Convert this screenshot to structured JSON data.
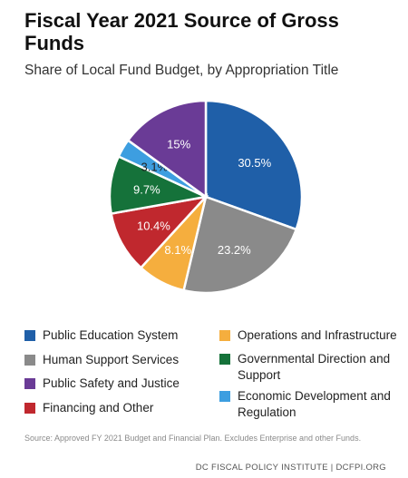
{
  "chart_data": {
    "type": "pie",
    "title": "Fiscal Year 2021 Source of Gross Funds",
    "subtitle": "Share of Local Fund Budget, by Appropriation Title",
    "slices": [
      {
        "label": "Public Education System",
        "value": 30.5,
        "display": "30.5%",
        "color": "#1f5fa8",
        "label_color": "#ffffff"
      },
      {
        "label": "Human Support Services",
        "value": 23.2,
        "display": "23.2%",
        "color": "#8a8a8a",
        "label_color": "#ffffff"
      },
      {
        "label": "Operations and Infrastructure",
        "value": 8.1,
        "display": "8.1%",
        "color": "#f5ae3e",
        "label_color": "#ffffff"
      },
      {
        "label": "Financing and Other",
        "value": 10.4,
        "display": "10.4%",
        "color": "#c0282e",
        "label_color": "#ffffff"
      },
      {
        "label": "Governmental Direction and Support",
        "value": 9.7,
        "display": "9.7%",
        "color": "#15723a",
        "label_color": "#ffffff"
      },
      {
        "label": "Economic Development and Regulation",
        "value": 3.1,
        "display": "3.1%",
        "color": "#3d9ee0",
        "label_color": "#222222"
      },
      {
        "label": "Public Safety and Justice",
        "value": 15,
        "display": "15%",
        "color": "#6a3b96",
        "label_color": "#ffffff"
      }
    ],
    "legend": [
      "Public Education System",
      "Human Support Services",
      "Public Safety and Justice",
      "Financing and Other",
      "Operations and Infrastructure",
      "Governmental Direction and Support",
      "Economic Development and Regulation"
    ],
    "legend_placement": "bottom",
    "source": "Source: Approved FY 2021 Budget and Financial Plan. Excludes Enterprise and other Funds.",
    "credit": "DC FISCAL POLICY INSTITUTE | DCFPI.ORG"
  }
}
